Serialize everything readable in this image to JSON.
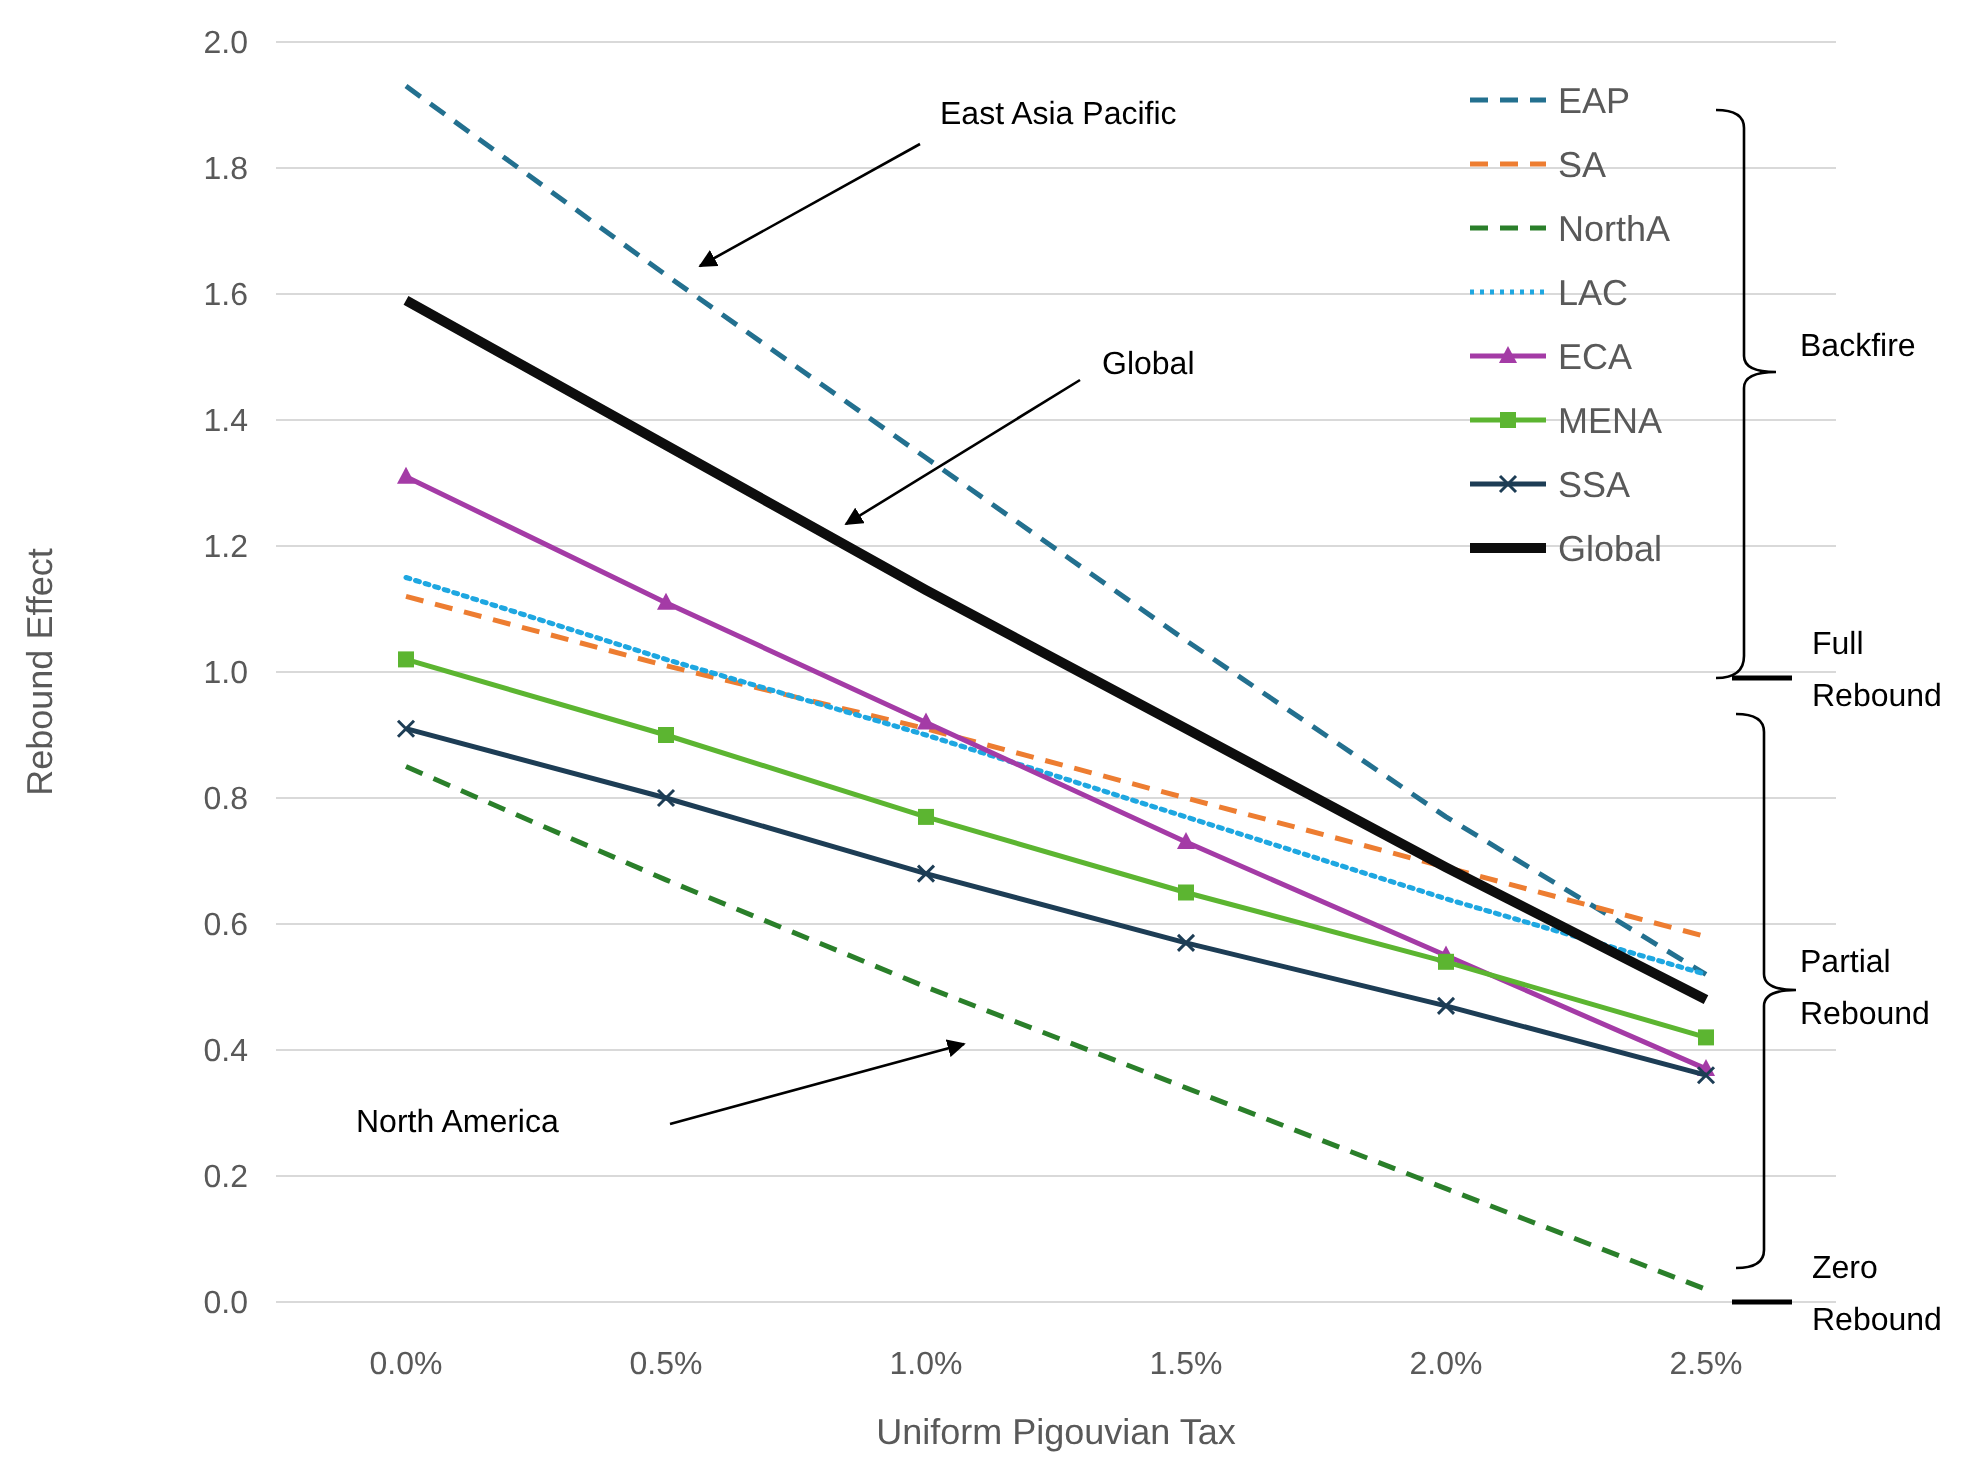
{
  "chart_data": {
    "type": "line",
    "xlabel": "Uniform Pigouvian Tax",
    "ylabel": "Rebound Effect",
    "categories": [
      "0.0%",
      "0.5%",
      "1.0%",
      "1.5%",
      "2.0%",
      "2.5%"
    ],
    "ylim": [
      0,
      2
    ],
    "yticks": [
      {
        "value": 0,
        "label": "0.0"
      },
      {
        "value": 0.2,
        "label": "0.2"
      },
      {
        "value": 0.4,
        "label": "0.4"
      },
      {
        "value": 0.6,
        "label": "0.6"
      },
      {
        "value": 0.8,
        "label": "0.8"
      },
      {
        "value": 1,
        "label": "1.0"
      },
      {
        "value": 1.2,
        "label": "1.2"
      },
      {
        "value": 1.4,
        "label": "1.4"
      },
      {
        "value": 1.6,
        "label": "1.6"
      },
      {
        "value": 1.8,
        "label": "1.8"
      },
      {
        "value": 2,
        "label": "2.0"
      }
    ],
    "grid": "y",
    "legend": "top right",
    "series": [
      {
        "name": "EAP",
        "color": "#23708f",
        "line_style": "dashed",
        "marker": "none",
        "values": [
          1.93,
          1.63,
          1.34,
          1.05,
          0.77,
          0.52
        ]
      },
      {
        "name": "SA",
        "color": "#ed7d31",
        "line_style": "dashed",
        "marker": "none",
        "values": [
          1.12,
          1.01,
          0.91,
          0.8,
          0.69,
          0.58
        ]
      },
      {
        "name": "NorthA",
        "color": "#2a7f2a",
        "line_style": "dashed",
        "marker": "none",
        "values": [
          0.85,
          0.67,
          0.5,
          0.34,
          0.18,
          0.02
        ]
      },
      {
        "name": "LAC",
        "color": "#1ea7e1",
        "line_style": "dotted",
        "marker": "none",
        "values": [
          1.15,
          1.02,
          0.9,
          0.77,
          0.64,
          0.52
        ]
      },
      {
        "name": "ECA",
        "color": "#a43ba6",
        "line_style": "solid",
        "marker": "triangle",
        "values": [
          1.31,
          1.11,
          0.92,
          0.73,
          0.55,
          0.37
        ]
      },
      {
        "name": "MENA",
        "color": "#5cb531",
        "line_style": "solid",
        "marker": "square",
        "values": [
          1.02,
          0.9,
          0.77,
          0.65,
          0.54,
          0.42
        ]
      },
      {
        "name": "SSA",
        "color": "#1d3d55",
        "line_style": "solid",
        "marker": "cross",
        "values": [
          0.91,
          0.8,
          0.68,
          0.57,
          0.47,
          0.36
        ]
      },
      {
        "name": "Global",
        "color": "#0d0d0d",
        "line_style": "solid",
        "marker": "none",
        "values": [
          1.59,
          1.36,
          1.13,
          0.91,
          0.69,
          0.48
        ]
      }
    ],
    "annotations": [
      "East Asia Pacific",
      "Global",
      "North America",
      "Backfire",
      "Full Rebound",
      "Partial Rebound",
      "Zero Rebound"
    ]
  }
}
